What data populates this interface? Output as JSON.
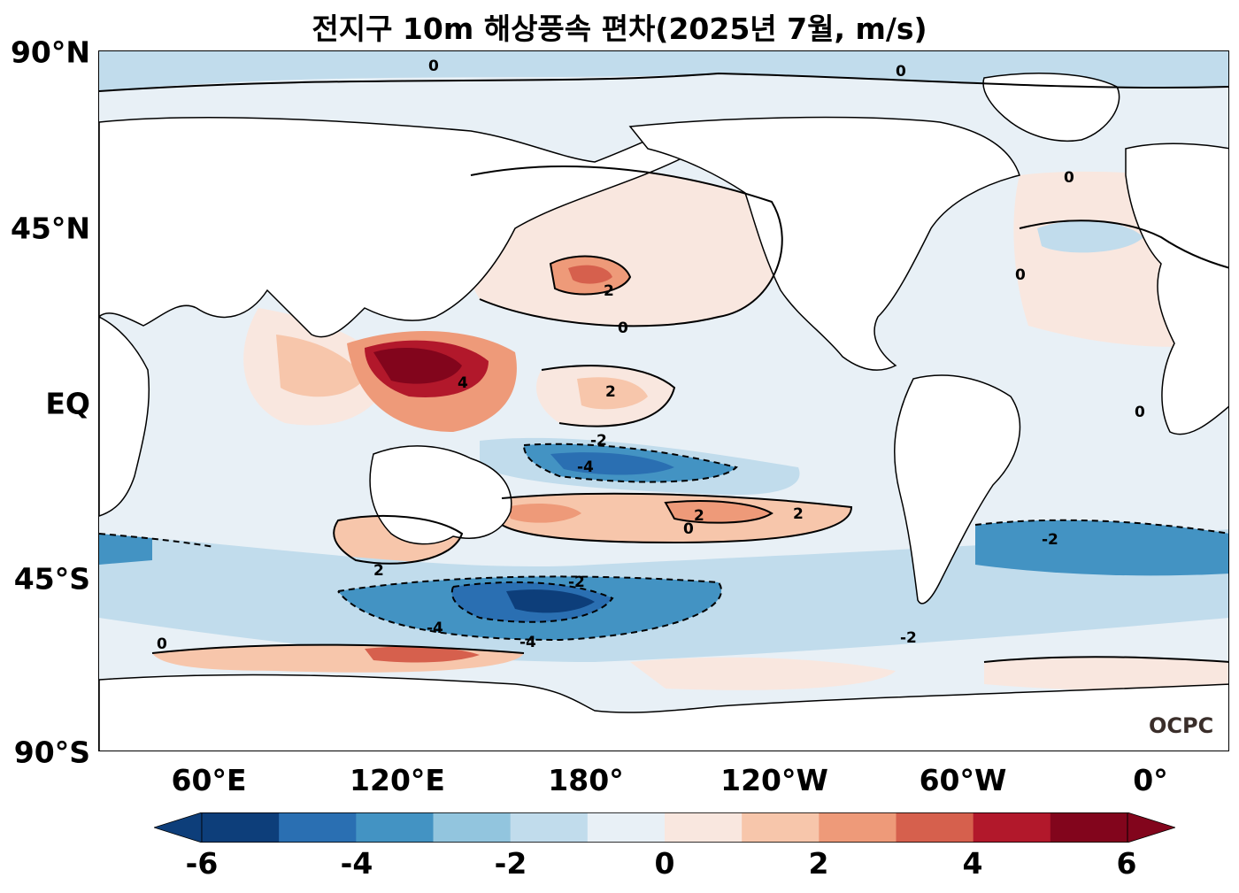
{
  "title": "전지구 10m 해상풍속 편차(2025년 7월, m/s)",
  "logo_text": "OCPC",
  "latitude_labels": [
    "90°N",
    "45°N",
    "EQ",
    "45°S",
    "90°S"
  ],
  "longitude_labels": [
    "60°E",
    "120°E",
    "180°",
    "120°W",
    "60°W",
    "0°"
  ],
  "colorbar": {
    "tick_labels": [
      "-6",
      "-4",
      "-2",
      "0",
      "2",
      "4",
      "6"
    ],
    "colors": [
      "#0d3e7a",
      "#2a6fb2",
      "#4393c3",
      "#92c5de",
      "#c1dcec",
      "#e8f0f6",
      "#f9e7df",
      "#f7c6ab",
      "#ee9a79",
      "#d6604d",
      "#b2182b",
      "#82051c"
    ],
    "extend": "both"
  },
  "contour_labels": [
    "0",
    "2",
    "4",
    "-2",
    "-4"
  ],
  "colors": {
    "positive_anomaly": "#d6604d",
    "negative_anomaly": "#2a6fb2",
    "land": "#ffffff",
    "contour": "#000000"
  }
}
